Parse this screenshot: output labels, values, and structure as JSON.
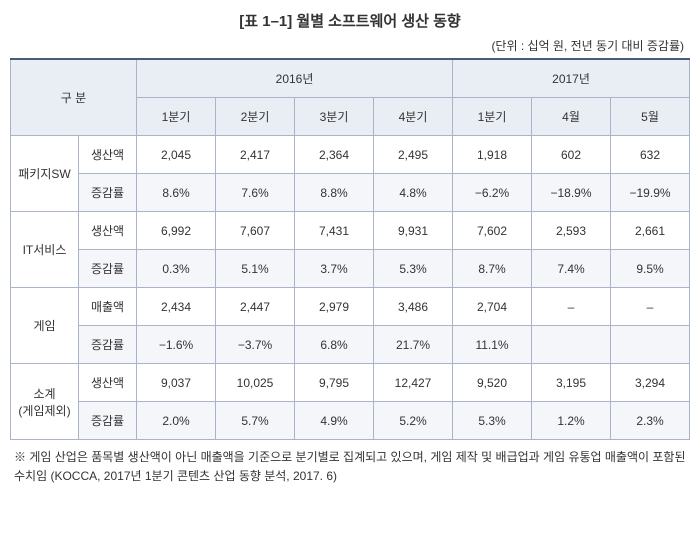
{
  "title": "[표 1–1] 월별 소프트웨어 생산 동향",
  "unit": "(단위 : 십억 원, 전년 동기 대비 증감률)",
  "header": {
    "gubun": "구 분",
    "y2016": "2016년",
    "y2017": "2017년",
    "cols2016": [
      "1분기",
      "2분기",
      "3분기",
      "4분기"
    ],
    "cols2017": [
      "1분기",
      "4월",
      "5월"
    ]
  },
  "rows": [
    {
      "cat": "패키지SW",
      "metrics": [
        {
          "label": "생산액",
          "vals": [
            "2,045",
            "2,417",
            "2,364",
            "2,495",
            "1,918",
            "602",
            "632"
          ]
        },
        {
          "label": "증감률",
          "vals": [
            "8.6%",
            "7.6%",
            "8.8%",
            "4.8%",
            "−6.2%",
            "−18.9%",
            "−19.9%"
          ]
        }
      ]
    },
    {
      "cat": "IT서비스",
      "metrics": [
        {
          "label": "생산액",
          "vals": [
            "6,992",
            "7,607",
            "7,431",
            "9,931",
            "7,602",
            "2,593",
            "2,661"
          ]
        },
        {
          "label": "증감률",
          "vals": [
            "0.3%",
            "5.1%",
            "3.7%",
            "5.3%",
            "8.7%",
            "7.4%",
            "9.5%"
          ]
        }
      ]
    },
    {
      "cat": "게임",
      "metrics": [
        {
          "label": "매출액",
          "vals": [
            "2,434",
            "2,447",
            "2,979",
            "3,486",
            "2,704",
            "–",
            "–"
          ]
        },
        {
          "label": "증감률",
          "vals": [
            "−1.6%",
            "−3.7%",
            "6.8%",
            "21.7%",
            "11.1%",
            "",
            ""
          ]
        }
      ]
    },
    {
      "cat": "소계\n(게임제외)",
      "metrics": [
        {
          "label": "생산액",
          "vals": [
            "9,037",
            "10,025",
            "9,795",
            "12,427",
            "9,520",
            "3,195",
            "3,294"
          ]
        },
        {
          "label": "증감률",
          "vals": [
            "2.0%",
            "5.7%",
            "4.9%",
            "5.2%",
            "5.3%",
            "1.2%",
            "2.3%"
          ]
        }
      ]
    }
  ],
  "footnote": "※ 게임 산업은 품목별 생산액이 아닌 매출액을 기준으로 분기별로 집계되고 있으며, 게임 제작 및 배급업과 게임 유통업 매출액이 포함된 수치임 (KOCCA, 2017년 1분기 콘텐츠 산업 동향 분석, 2017. 6)"
}
